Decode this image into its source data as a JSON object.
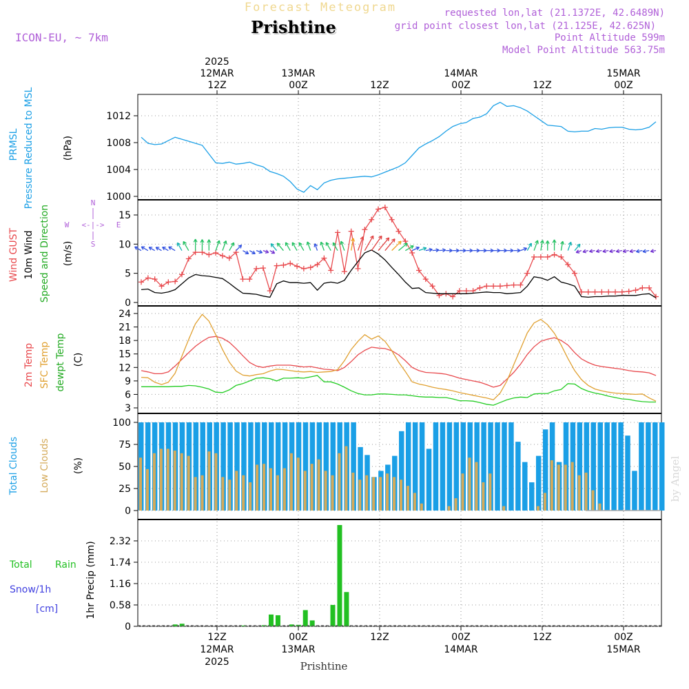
{
  "header": {
    "forecast_title": "Forecast Meteogram",
    "location": "Prishtine",
    "model": "ICON-EU, ~ 7km",
    "requested": "requested lon,lat (21.1372E, 42.6489N)",
    "gridpoint": "grid point closest lon,lat (21.125E, 42.625N)",
    "point_alt": "Point Altitude 599m",
    "model_alt": "Model Point Altitude 563.75m",
    "watermark": "by Angel",
    "bottom_name": "Prishtine"
  },
  "colors": {
    "pressure": "#1a9fe6",
    "gust": "#e8484c",
    "wind": "#000000",
    "sfc": "#e0a030",
    "dew": "#22cc22",
    "total_cloud": "#1a9fe6",
    "low_cloud": "#d4aa5a",
    "rain": "#22c022",
    "snow": "#4040e0",
    "purple": "#b060d8"
  },
  "time_axis": {
    "top_ticks": [
      {
        "h": 12,
        "lines": [
          "2025",
          "12MAR",
          "12Z"
        ]
      },
      {
        "h": 24,
        "lines": [
          "13MAR",
          "00Z"
        ]
      },
      {
        "h": 36,
        "lines": [
          "12Z"
        ]
      },
      {
        "h": 48,
        "lines": [
          "14MAR",
          "00Z"
        ]
      },
      {
        "h": 60,
        "lines": [
          "12Z"
        ]
      },
      {
        "h": 72,
        "lines": [
          "15MAR",
          "00Z"
        ]
      }
    ],
    "bottom_ticks": [
      {
        "h": 12,
        "lines": [
          "12Z",
          "12MAR",
          "2025"
        ]
      },
      {
        "h": 24,
        "lines": [
          "00Z",
          "13MAR"
        ]
      },
      {
        "h": 36,
        "lines": [
          "12Z"
        ]
      },
      {
        "h": 48,
        "lines": [
          "00Z",
          "14MAR"
        ]
      },
      {
        "h": 60,
        "lines": [
          "12Z"
        ]
      },
      {
        "h": 72,
        "lines": [
          "00Z",
          "15MAR"
        ]
      }
    ]
  },
  "panels": {
    "pressure": {
      "labels": [
        "PRMSL",
        "Pressure Reduced to MSL",
        "(hPa)"
      ],
      "ticks": [
        "1000",
        "1004",
        "1008",
        "1012"
      ]
    },
    "wind": {
      "labels": [
        "Wind GUST",
        "10m Wind",
        "Speed and Direction",
        "(m/s)"
      ],
      "ticks": [
        "0",
        "5",
        "10",
        "15"
      ],
      "compass": [
        "N",
        "S",
        "W",
        "E",
        "<-|->"
      ]
    },
    "temp": {
      "labels": [
        "2m Temp",
        "SFC Temp",
        "dewpt Temp",
        "(C)"
      ],
      "ticks": [
        "3",
        "6",
        "9",
        "12",
        "15",
        "18",
        "21",
        "24"
      ]
    },
    "cloud": {
      "labels": [
        "Total Clouds",
        "Low Clouds",
        "(%)"
      ],
      "ticks": [
        "0",
        "25",
        "50",
        "75",
        "100"
      ]
    },
    "precip": {
      "labels": [
        "Total",
        "Rain",
        "Snow/1h",
        "[cm]",
        "1hr Precip (mm)"
      ],
      "ticks": [
        "0",
        "0.58",
        "1.16",
        "1.74",
        "2.32"
      ]
    }
  },
  "chart_data": [
    {
      "type": "line",
      "name": "pressure",
      "ylim": [
        1000,
        1014
      ],
      "x": [
        0,
        1,
        2,
        3,
        4,
        5,
        6,
        7,
        8,
        9,
        10,
        11,
        12,
        13,
        14,
        15,
        16,
        17,
        18,
        19,
        20,
        21,
        22,
        23,
        24,
        25,
        26,
        27,
        28,
        29,
        30,
        31,
        32,
        33,
        34,
        35,
        36,
        37,
        38,
        39,
        40,
        41,
        42,
        43,
        44,
        45,
        46,
        47,
        48,
        49,
        50,
        51,
        52,
        53,
        54,
        55,
        56,
        57,
        58,
        59,
        60,
        61,
        62,
        63,
        64,
        65,
        66,
        67,
        68,
        69,
        70,
        71,
        72,
        73,
        74,
        75,
        76
      ],
      "values": [
        1008.8,
        1007.9,
        1007.7,
        1007.8,
        1008.3,
        1008.8,
        1008.5,
        1008.2,
        1007.9,
        1007.6,
        1006.3,
        1005.0,
        1004.9,
        1005.1,
        1004.8,
        1004.9,
        1005.1,
        1004.7,
        1004.4,
        1003.7,
        1003.4,
        1003.0,
        1002.2,
        1001.1,
        1000.6,
        1001.6,
        1001.0,
        1002.0,
        1002.4,
        1002.6,
        1002.7,
        1002.8,
        1002.9,
        1003.0,
        1002.9,
        1003.2,
        1003.6,
        1004.0,
        1004.4,
        1005.0,
        1006.1,
        1007.2,
        1007.8,
        1008.3,
        1008.9,
        1009.7,
        1010.4,
        1010.8,
        1011.0,
        1011.6,
        1011.8,
        1012.3,
        1013.5,
        1014.0,
        1013.4,
        1013.5,
        1013.2,
        1012.7,
        1012.0,
        1011.3,
        1010.6,
        1010.5,
        1010.4,
        1009.7,
        1009.6,
        1009.7,
        1009.7,
        1010.1,
        1010.0,
        1010.2,
        1010.3,
        1010.3,
        1010.0,
        1009.9,
        1010.0,
        1010.3,
        1011.1
      ]
    },
    {
      "type": "line",
      "name": "wind",
      "ylim": [
        0,
        17
      ],
      "x": [
        0,
        1,
        2,
        3,
        4,
        5,
        6,
        7,
        8,
        9,
        10,
        11,
        12,
        13,
        14,
        15,
        16,
        17,
        18,
        19,
        20,
        21,
        22,
        23,
        24,
        25,
        26,
        27,
        28,
        29,
        30,
        31,
        32,
        33,
        34,
        35,
        36,
        37,
        38,
        39,
        40,
        41,
        42,
        43,
        44,
        45,
        46,
        47,
        48,
        49,
        50,
        51,
        52,
        53,
        54,
        55,
        56,
        57,
        58,
        59,
        60,
        61,
        62,
        63,
        64,
        65,
        66,
        67,
        68,
        69,
        70,
        71,
        72,
        73,
        74,
        75,
        76
      ],
      "gust": [
        3.5,
        4.2,
        4.0,
        2.8,
        3.5,
        3.6,
        4.8,
        7.5,
        8.6,
        8.6,
        8.2,
        8.5,
        8.0,
        7.6,
        8.6,
        4.0,
        4.0,
        5.8,
        5.9,
        2.0,
        6.3,
        6.4,
        6.7,
        6.2,
        5.8,
        6.0,
        6.5,
        7.6,
        5.5,
        12.0,
        5.3,
        12.2,
        5.8,
        12.5,
        14.2,
        16.0,
        16.3,
        14.2,
        12.2,
        10.5,
        8.5,
        5.5,
        4.0,
        2.8,
        1.2,
        1.5,
        1.0,
        2.0,
        2.0,
        2.0,
        2.5,
        2.8,
        2.8,
        2.8,
        2.9,
        3.0,
        3.0,
        5.0,
        7.8,
        7.8,
        7.8,
        8.2,
        7.8,
        6.5,
        5.0,
        1.8,
        1.8,
        1.8,
        1.8,
        1.8,
        1.8,
        1.8,
        1.9,
        2.1,
        2.5,
        2.5,
        1.0
      ],
      "wind": [
        2.2,
        2.3,
        1.7,
        1.6,
        1.8,
        2.2,
        3.2,
        4.2,
        4.8,
        4.6,
        4.5,
        4.3,
        4.1,
        3.3,
        2.4,
        1.6,
        1.5,
        1.4,
        1.1,
        0.9,
        3.2,
        3.7,
        3.4,
        3.4,
        3.3,
        3.4,
        2.1,
        3.3,
        3.5,
        3.3,
        3.8,
        5.5,
        7.0,
        8.5,
        9.0,
        8.3,
        7.3,
        6.0,
        4.8,
        3.5,
        2.4,
        2.5,
        1.7,
        1.6,
        1.5,
        1.5,
        1.5,
        1.5,
        1.5,
        1.6,
        1.7,
        1.8,
        1.7,
        1.7,
        1.5,
        1.6,
        1.7,
        2.8,
        4.4,
        4.2,
        3.8,
        4.4,
        3.5,
        3.2,
        2.8,
        1.0,
        0.9,
        1.0,
        1.0,
        1.1,
        1.1,
        1.2,
        1.2,
        1.2,
        1.4,
        1.5,
        0.8
      ],
      "arrow_dir": [
        300,
        300,
        300,
        300,
        300,
        300,
        330,
        330,
        0,
        0,
        0,
        20,
        20,
        30,
        45,
        120,
        120,
        110,
        110,
        120,
        320,
        320,
        330,
        330,
        330,
        340,
        340,
        340,
        330,
        330,
        340,
        10,
        20,
        30,
        35,
        40,
        40,
        45,
        50,
        60,
        65,
        70,
        80,
        85,
        85,
        90,
        90,
        90,
        90,
        90,
        90,
        90,
        90,
        90,
        90,
        90,
        70,
        30,
        20,
        10,
        0,
        0,
        10,
        20,
        40,
        250,
        255,
        260,
        260,
        260,
        260,
        260,
        260,
        260,
        260,
        260,
        260
      ]
    },
    {
      "type": "line",
      "name": "temperature",
      "ylim": [
        3,
        24.5
      ],
      "x": [
        0,
        1,
        2,
        3,
        4,
        5,
        6,
        7,
        8,
        9,
        10,
        11,
        12,
        13,
        14,
        15,
        16,
        17,
        18,
        19,
        20,
        21,
        22,
        23,
        24,
        25,
        26,
        27,
        28,
        29,
        30,
        31,
        32,
        33,
        34,
        35,
        36,
        37,
        38,
        39,
        40,
        41,
        42,
        43,
        44,
        45,
        46,
        47,
        48,
        49,
        50,
        51,
        52,
        53,
        54,
        55,
        56,
        57,
        58,
        59,
        60,
        61,
        62,
        63,
        64,
        65,
        66,
        67,
        68,
        69,
        70,
        71,
        72,
        73,
        74,
        75,
        76
      ],
      "t2m": [
        11.3,
        11.0,
        10.6,
        10.6,
        11.0,
        12.3,
        13.8,
        15.3,
        16.7,
        17.8,
        18.7,
        18.9,
        18.5,
        17.6,
        16.2,
        14.6,
        13.1,
        12.3,
        12.0,
        12.3,
        12.5,
        12.5,
        12.5,
        12.3,
        12.1,
        12.2,
        11.9,
        11.6,
        11.5,
        11.3,
        12.0,
        13.3,
        14.8,
        15.8,
        16.5,
        16.3,
        16.2,
        15.7,
        14.8,
        13.5,
        12.0,
        11.3,
        10.9,
        10.8,
        10.7,
        10.5,
        10.1,
        9.6,
        9.3,
        9.0,
        8.7,
        8.2,
        7.6,
        8.0,
        9.4,
        10.9,
        12.7,
        14.9,
        16.6,
        17.8,
        18.3,
        18.6,
        18.0,
        17.0,
        15.3,
        13.9,
        13.1,
        12.5,
        12.2,
        12.0,
        11.8,
        11.6,
        11.3,
        11.1,
        11.0,
        10.8,
        10.2
      ],
      "sfc": [
        9.8,
        9.7,
        8.7,
        8.2,
        8.7,
        10.7,
        14.5,
        18.2,
        21.7,
        23.8,
        22.3,
        19.3,
        16.0,
        13.2,
        11.2,
        10.3,
        10.1,
        10.4,
        10.6,
        11.2,
        11.6,
        11.5,
        11.3,
        11.1,
        11.0,
        11.1,
        10.9,
        11.0,
        11.1,
        11.5,
        13.5,
        16.0,
        17.8,
        19.3,
        18.3,
        19.0,
        17.8,
        15.7,
        13.2,
        11.1,
        8.8,
        8.3,
        8.0,
        7.6,
        7.3,
        7.1,
        6.8,
        6.4,
        6.1,
        5.8,
        5.5,
        5.2,
        4.8,
        6.3,
        9.0,
        12.6,
        16.1,
        19.7,
        21.9,
        22.7,
        21.5,
        19.6,
        17.0,
        14.0,
        11.3,
        9.3,
        8.0,
        7.2,
        6.8,
        6.5,
        6.3,
        6.2,
        6.1,
        6.0,
        6.1,
        5.2,
        4.5
      ],
      "dew": [
        7.7,
        7.7,
        7.7,
        7.7,
        7.7,
        7.8,
        7.8,
        8.0,
        7.9,
        7.6,
        7.2,
        6.5,
        6.4,
        7.0,
        8.0,
        8.4,
        9.0,
        9.6,
        9.7,
        9.5,
        9.0,
        9.6,
        9.6,
        9.7,
        9.6,
        9.9,
        10.2,
        8.8,
        8.8,
        8.3,
        7.6,
        6.8,
        6.2,
        5.9,
        5.9,
        6.1,
        6.1,
        6.0,
        5.9,
        5.9,
        5.7,
        5.5,
        5.4,
        5.4,
        5.3,
        5.3,
        5.0,
        4.6,
        4.6,
        4.5,
        4.2,
        3.8,
        3.6,
        4.2,
        4.8,
        5.2,
        5.4,
        5.3,
        6.1,
        6.2,
        6.2,
        6.8,
        7.1,
        8.4,
        8.3,
        7.3,
        6.7,
        6.3,
        6.0,
        5.6,
        5.3,
        5.0,
        4.9,
        4.6,
        4.4,
        4.3,
        4.3
      ]
    },
    {
      "type": "bar",
      "name": "clouds",
      "ylim": [
        0,
        100
      ],
      "x": [
        0,
        1,
        2,
        3,
        4,
        5,
        6,
        7,
        8,
        9,
        10,
        11,
        12,
        13,
        14,
        15,
        16,
        17,
        18,
        19,
        20,
        21,
        22,
        23,
        24,
        25,
        26,
        27,
        28,
        29,
        30,
        31,
        32,
        33,
        34,
        35,
        36,
        37,
        38,
        39,
        40,
        41,
        42,
        43,
        44,
        45,
        46,
        47,
        48,
        49,
        50,
        51,
        52,
        53,
        54,
        55,
        56,
        57,
        58,
        59,
        60,
        61,
        62,
        63,
        64,
        65,
        66,
        67,
        68,
        69,
        70,
        71,
        72,
        73,
        74,
        75,
        76
      ],
      "total": [
        100,
        100,
        100,
        100,
        100,
        100,
        100,
        100,
        100,
        100,
        100,
        100,
        100,
        100,
        100,
        100,
        100,
        100,
        100,
        100,
        100,
        100,
        100,
        100,
        100,
        100,
        100,
        100,
        100,
        100,
        100,
        100,
        72,
        63,
        38,
        45,
        52,
        62,
        90,
        100,
        100,
        100,
        70,
        100,
        100,
        100,
        100,
        100,
        100,
        100,
        100,
        100,
        100,
        100,
        100,
        78,
        55,
        32,
        62,
        92,
        100,
        55,
        100,
        100,
        100,
        100,
        100,
        100,
        100,
        100,
        100,
        85,
        45,
        100,
        100,
        100,
        100
      ],
      "low": [
        60,
        47,
        65,
        70,
        70,
        68,
        65,
        62,
        38,
        40,
        67,
        65,
        38,
        35,
        45,
        40,
        32,
        52,
        53,
        48,
        40,
        48,
        65,
        60,
        45,
        53,
        58,
        45,
        40,
        65,
        73,
        43,
        35,
        40,
        38,
        38,
        42,
        38,
        35,
        28,
        20,
        8,
        0,
        0,
        0,
        5,
        14,
        42,
        60,
        55,
        32,
        42,
        0,
        5,
        0,
        0,
        0,
        0,
        5,
        20,
        57,
        52,
        52,
        55,
        40,
        43,
        23,
        8,
        0,
        0,
        0,
        0,
        0,
        0,
        0,
        0,
        0
      ]
    },
    {
      "type": "bar",
      "name": "precip",
      "ylim": [
        0,
        2.9
      ],
      "x": [
        0,
        1,
        2,
        3,
        4,
        5,
        6,
        7,
        8,
        9,
        10,
        11,
        12,
        13,
        14,
        15,
        16,
        17,
        18,
        19,
        20,
        21,
        22,
        23,
        24,
        25,
        26,
        27,
        28,
        29,
        30,
        31,
        32,
        33,
        34,
        35,
        36,
        37,
        38,
        39,
        40,
        41,
        42,
        43,
        44,
        45,
        46,
        47,
        48,
        49,
        50,
        51,
        52,
        53,
        54,
        55,
        56,
        57,
        58,
        59,
        60,
        61,
        62,
        63,
        64,
        65,
        66,
        67,
        68,
        69,
        70,
        71,
        72,
        73,
        74,
        75,
        76
      ],
      "values": [
        0,
        0,
        0,
        0,
        0,
        0.05,
        0.07,
        0,
        0,
        0,
        0,
        0,
        0,
        0,
        0,
        0.02,
        0,
        0,
        0.03,
        0.32,
        0.3,
        0,
        0.05,
        0.04,
        0.44,
        0.16,
        0,
        0,
        0.58,
        2.75,
        0.93,
        0,
        0,
        0,
        0,
        0,
        0,
        0,
        0,
        0,
        0,
        0,
        0,
        0,
        0,
        0,
        0,
        0,
        0,
        0,
        0,
        0,
        0,
        0,
        0,
        0,
        0,
        0,
        0,
        0,
        0,
        0,
        0,
        0,
        0,
        0,
        0,
        0,
        0,
        0,
        0,
        0,
        0,
        0,
        0,
        0,
        0
      ]
    }
  ]
}
